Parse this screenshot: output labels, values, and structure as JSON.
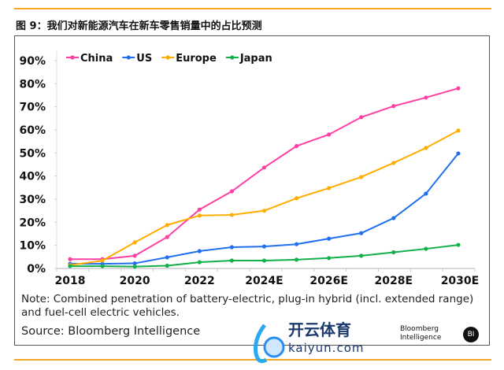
{
  "title": "图 9：我们对新能源汽车在新车零售销量中的占比预测",
  "note": "Note: Combined penetration of battery-electric, plug-in hybrid (incl. extended range) and fuel-cell electric vehicles.",
  "source": "Source: Bloomberg Intelligence",
  "watermark": {
    "cn": "开云体育",
    "en": "kaiyun.com",
    "logo_text": "Bloomberg Intelligence",
    "badge": "BI"
  },
  "chart_data": {
    "type": "line",
    "title": "",
    "xlabel": "",
    "ylabel": "",
    "x": [
      "2018",
      "2019",
      "2020",
      "2021",
      "2022",
      "2023",
      "2024E",
      "2025E",
      "2026E",
      "2027E",
      "2028E",
      "2029E",
      "2030E"
    ],
    "xtick_labels": [
      "2018",
      "2020",
      "2022",
      "2024E",
      "2026E",
      "2028E",
      "2030E"
    ],
    "ytick_labels": [
      "0%",
      "10%",
      "20%",
      "30%",
      "40%",
      "50%",
      "60%",
      "70%",
      "80%",
      "90%"
    ],
    "ylim": [
      0,
      90
    ],
    "legend": "top-left",
    "series": [
      {
        "name": "China",
        "color": "#ff3fa4",
        "values": [
          4,
          4,
          5.5,
          13.6,
          25.5,
          33.4,
          43.7,
          53,
          58,
          65.5,
          70.3,
          74,
          78
        ]
      },
      {
        "name": "US",
        "color": "#1f6ff0",
        "values": [
          2,
          2,
          2.2,
          4.8,
          7.5,
          9.2,
          9.5,
          10.5,
          12.9,
          15.3,
          21.8,
          32.4,
          49.8
        ]
      },
      {
        "name": "Europe",
        "color": "#ffae00",
        "values": [
          1.4,
          3.4,
          11.3,
          18.8,
          22.9,
          23.2,
          25,
          30.4,
          34.8,
          39.6,
          45.7,
          52.2,
          59.7
        ]
      },
      {
        "name": "Japan",
        "color": "#12b04a",
        "values": [
          1,
          1,
          0.8,
          1.2,
          2.7,
          3.4,
          3.4,
          3.8,
          4.5,
          5.5,
          7,
          8.5,
          10.2
        ]
      }
    ]
  }
}
